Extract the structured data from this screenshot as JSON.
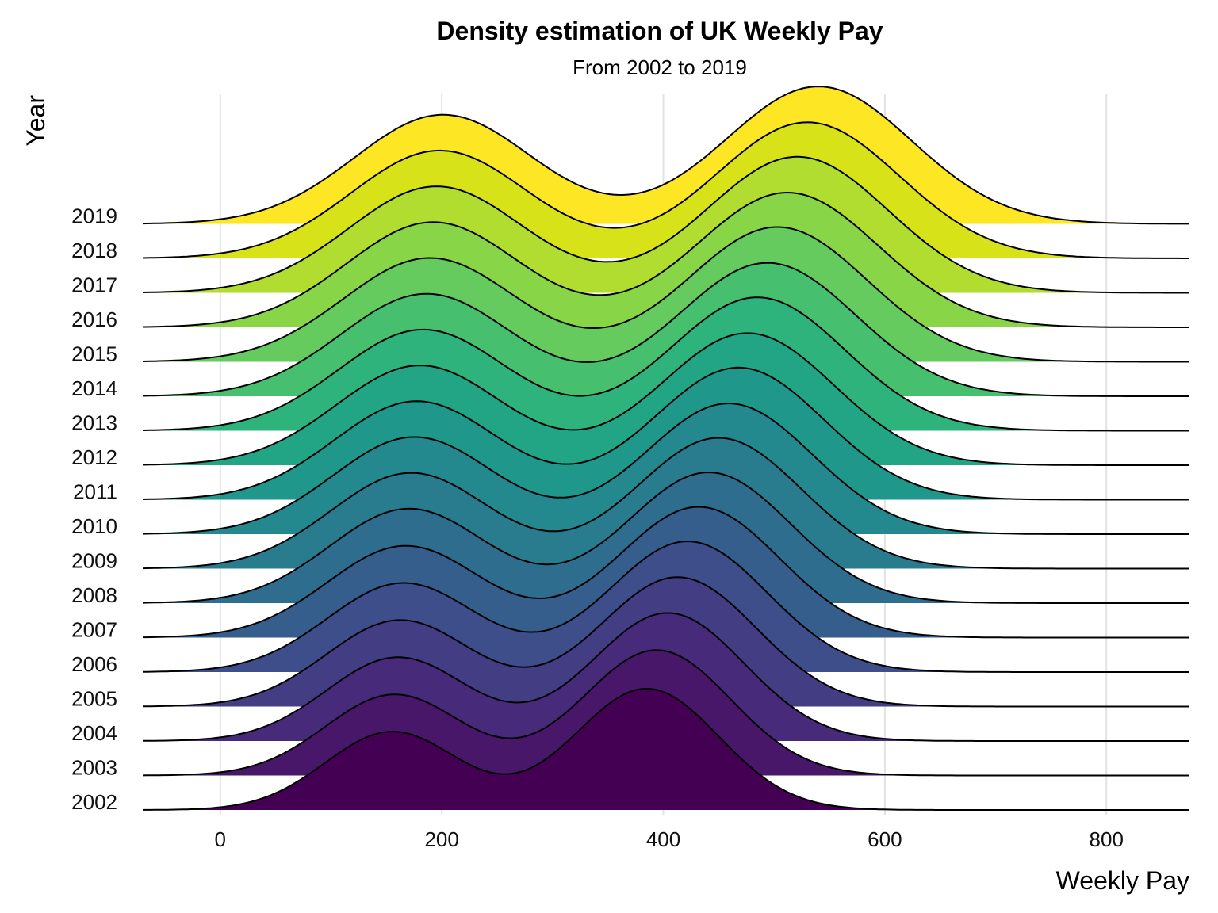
{
  "chart_data": {
    "type": "ridgeline",
    "title": "Density estimation of UK Weekly Pay",
    "subtitle": "From 2002 to 2019",
    "xlabel": "Weekly Pay",
    "ylabel": "Year",
    "xlim": [
      -70,
      875
    ],
    "x_ticks": [
      0,
      200,
      400,
      600,
      800
    ],
    "grid": "vertical",
    "legend": "none",
    "palette": "viridis",
    "series": [
      {
        "name": "2002",
        "color": "#440154",
        "peaks": [
          {
            "mean": 155,
            "sd": 60,
            "height": 0.58
          },
          {
            "mean": 385,
            "sd": 65,
            "height": 0.9
          }
        ]
      },
      {
        "name": "2003",
        "color": "#481769",
        "peaks": [
          {
            "mean": 157,
            "sd": 62,
            "height": 0.6
          },
          {
            "mean": 394,
            "sd": 67,
            "height": 0.93
          }
        ]
      },
      {
        "name": "2004",
        "color": "#472A7A",
        "peaks": [
          {
            "mean": 160,
            "sd": 64,
            "height": 0.62
          },
          {
            "mean": 404,
            "sd": 69,
            "height": 0.95
          }
        ]
      },
      {
        "name": "2005",
        "color": "#433D84",
        "peaks": [
          {
            "mean": 162,
            "sd": 66,
            "height": 0.64
          },
          {
            "mean": 413,
            "sd": 71,
            "height": 0.96
          }
        ]
      },
      {
        "name": "2006",
        "color": "#3D4E8A",
        "peaks": [
          {
            "mean": 165,
            "sd": 68,
            "height": 0.66
          },
          {
            "mean": 422,
            "sd": 72,
            "height": 0.97
          }
        ]
      },
      {
        "name": "2007",
        "color": "#355E8D",
        "peaks": [
          {
            "mean": 167,
            "sd": 70,
            "height": 0.68
          },
          {
            "mean": 432,
            "sd": 73,
            "height": 0.97
          }
        ]
      },
      {
        "name": "2008",
        "color": "#2E6D8E",
        "peaks": [
          {
            "mean": 170,
            "sd": 71,
            "height": 0.7
          },
          {
            "mean": 441,
            "sd": 74,
            "height": 0.97
          }
        ]
      },
      {
        "name": "2009",
        "color": "#297B8E",
        "peaks": [
          {
            "mean": 172,
            "sd": 72,
            "height": 0.71
          },
          {
            "mean": 450,
            "sd": 75,
            "height": 0.97
          }
        ]
      },
      {
        "name": "2010",
        "color": "#23898E",
        "peaks": [
          {
            "mean": 175,
            "sd": 73,
            "height": 0.72
          },
          {
            "mean": 459,
            "sd": 76,
            "height": 0.97
          }
        ]
      },
      {
        "name": "2011",
        "color": "#1F978B",
        "peaks": [
          {
            "mean": 177,
            "sd": 74,
            "height": 0.73
          },
          {
            "mean": 468,
            "sd": 77,
            "height": 0.98
          }
        ]
      },
      {
        "name": "2012",
        "color": "#21A585",
        "peaks": [
          {
            "mean": 180,
            "sd": 75,
            "height": 0.74
          },
          {
            "mean": 476,
            "sd": 78,
            "height": 0.98
          }
        ]
      },
      {
        "name": "2013",
        "color": "#2EB37C",
        "peaks": [
          {
            "mean": 183,
            "sd": 76,
            "height": 0.75
          },
          {
            "mean": 485,
            "sd": 79,
            "height": 0.99
          }
        ]
      },
      {
        "name": "2014",
        "color": "#46C06F",
        "peaks": [
          {
            "mean": 186,
            "sd": 77,
            "height": 0.76
          },
          {
            "mean": 494,
            "sd": 80,
            "height": 0.99
          }
        ]
      },
      {
        "name": "2015",
        "color": "#65CB5E",
        "peaks": [
          {
            "mean": 189,
            "sd": 78,
            "height": 0.77
          },
          {
            "mean": 503,
            "sd": 81,
            "height": 1.0
          }
        ]
      },
      {
        "name": "2016",
        "color": "#89D548",
        "peaks": [
          {
            "mean": 192,
            "sd": 78,
            "height": 0.78
          },
          {
            "mean": 512,
            "sd": 82,
            "height": 1.0
          }
        ]
      },
      {
        "name": "2017",
        "color": "#B0DD2F",
        "peaks": [
          {
            "mean": 195,
            "sd": 79,
            "height": 0.79
          },
          {
            "mean": 521,
            "sd": 82,
            "height": 1.01
          }
        ]
      },
      {
        "name": "2018",
        "color": "#D8E219",
        "peaks": [
          {
            "mean": 198,
            "sd": 80,
            "height": 0.8
          },
          {
            "mean": 530,
            "sd": 83,
            "height": 1.01
          }
        ]
      },
      {
        "name": "2019",
        "color": "#FDE725",
        "peaks": [
          {
            "mean": 201,
            "sd": 80,
            "height": 0.81
          },
          {
            "mean": 540,
            "sd": 84,
            "height": 1.02
          }
        ]
      }
    ]
  }
}
